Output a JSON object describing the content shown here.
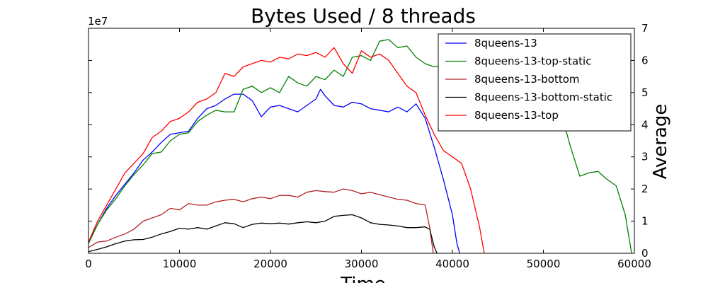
{
  "chart_data": {
    "type": "line",
    "title": "Bytes Used / 8 threads",
    "xlabel": "Time",
    "ylabel": "Average",
    "offset_text": "1e7",
    "xlim": [
      0,
      60000
    ],
    "ylim": [
      0,
      70000000
    ],
    "x_ticks": [
      0,
      10000,
      20000,
      30000,
      40000,
      50000,
      60000
    ],
    "x_tick_labels": [
      "0",
      "10000",
      "20000",
      "30000",
      "40000",
      "50000",
      "60000"
    ],
    "y_ticks": [
      0,
      10000000,
      20000000,
      30000000,
      40000000,
      50000000,
      60000000,
      70000000
    ],
    "y_tick_labels": [
      "0",
      "1",
      "2",
      "3",
      "4",
      "5",
      "6",
      "7"
    ],
    "legend_position": "upper-right",
    "grid": false,
    "series": [
      {
        "name": "8queens-13",
        "color": "#0000ff",
        "points": [
          [
            0,
            3500000
          ],
          [
            1000,
            9000000
          ],
          [
            2000,
            14000000
          ],
          [
            3000,
            18000000
          ],
          [
            4000,
            21500000
          ],
          [
            5000,
            25000000
          ],
          [
            6000,
            29000000
          ],
          [
            7000,
            31500000
          ],
          [
            8000,
            34500000
          ],
          [
            9000,
            37000000
          ],
          [
            10000,
            37500000
          ],
          [
            11000,
            38000000
          ],
          [
            12000,
            42000000
          ],
          [
            13000,
            45000000
          ],
          [
            14000,
            46000000
          ],
          [
            15000,
            48000000
          ],
          [
            16000,
            49500000
          ],
          [
            17000,
            49500000
          ],
          [
            18000,
            47500000
          ],
          [
            19000,
            42500000
          ],
          [
            20000,
            45500000
          ],
          [
            21000,
            46000000
          ],
          [
            22000,
            45000000
          ],
          [
            23000,
            44000000
          ],
          [
            24000,
            46000000
          ],
          [
            25000,
            48000000
          ],
          [
            25500,
            51000000
          ],
          [
            26000,
            49000000
          ],
          [
            27000,
            46000000
          ],
          [
            28000,
            45500000
          ],
          [
            29000,
            47000000
          ],
          [
            30000,
            46500000
          ],
          [
            31000,
            45000000
          ],
          [
            32000,
            44500000
          ],
          [
            33000,
            44000000
          ],
          [
            34000,
            45500000
          ],
          [
            35000,
            44000000
          ],
          [
            36000,
            46500000
          ],
          [
            37000,
            42000000
          ],
          [
            38000,
            33000000
          ],
          [
            39000,
            23000000
          ],
          [
            40000,
            12000000
          ],
          [
            40500,
            3000000
          ],
          [
            40800,
            0
          ]
        ]
      },
      {
        "name": "8queens-13-top-static",
        "color": "#008000",
        "points": [
          [
            0,
            3000000
          ],
          [
            1000,
            9000000
          ],
          [
            2000,
            13500000
          ],
          [
            3000,
            17000000
          ],
          [
            4000,
            21000000
          ],
          [
            5000,
            24500000
          ],
          [
            6000,
            27500000
          ],
          [
            7000,
            31000000
          ],
          [
            8000,
            31500000
          ],
          [
            9000,
            35000000
          ],
          [
            10000,
            37000000
          ],
          [
            11000,
            37500000
          ],
          [
            12000,
            41000000
          ],
          [
            13000,
            43000000
          ],
          [
            14000,
            44500000
          ],
          [
            15000,
            44000000
          ],
          [
            16000,
            44000000
          ],
          [
            17000,
            51000000
          ],
          [
            18000,
            52000000
          ],
          [
            19000,
            50000000
          ],
          [
            20000,
            51500000
          ],
          [
            21000,
            50000000
          ],
          [
            22000,
            55000000
          ],
          [
            23000,
            53000000
          ],
          [
            24000,
            52000000
          ],
          [
            25000,
            55000000
          ],
          [
            26000,
            54000000
          ],
          [
            27000,
            57000000
          ],
          [
            28000,
            55000000
          ],
          [
            29000,
            61000000
          ],
          [
            30000,
            61500000
          ],
          [
            31000,
            60000000
          ],
          [
            32000,
            66000000
          ],
          [
            33000,
            66500000
          ],
          [
            34000,
            64000000
          ],
          [
            35000,
            64500000
          ],
          [
            36000,
            61000000
          ],
          [
            37000,
            59000000
          ],
          [
            38000,
            58000000
          ],
          [
            39000,
            58500000
          ],
          [
            52000,
            43000000
          ],
          [
            53000,
            33000000
          ],
          [
            54000,
            24000000
          ],
          [
            55000,
            25000000
          ],
          [
            56000,
            25500000
          ],
          [
            57000,
            23000000
          ],
          [
            58000,
            21000000
          ],
          [
            59000,
            12000000
          ],
          [
            59700,
            0
          ]
        ]
      },
      {
        "name": "8queens-13-bottom",
        "color": "#b22222",
        "points": [
          [
            0,
            1800000
          ],
          [
            1000,
            3500000
          ],
          [
            2000,
            3800000
          ],
          [
            3000,
            5000000
          ],
          [
            4000,
            6000000
          ],
          [
            5000,
            7500000
          ],
          [
            6000,
            10000000
          ],
          [
            7000,
            11000000
          ],
          [
            8000,
            12000000
          ],
          [
            9000,
            14000000
          ],
          [
            10000,
            13500000
          ],
          [
            11000,
            15500000
          ],
          [
            12000,
            15000000
          ],
          [
            13000,
            15000000
          ],
          [
            14000,
            16000000
          ],
          [
            15000,
            16500000
          ],
          [
            16000,
            16800000
          ],
          [
            17000,
            16000000
          ],
          [
            18000,
            17000000
          ],
          [
            19000,
            17500000
          ],
          [
            20000,
            17000000
          ],
          [
            21000,
            18000000
          ],
          [
            22000,
            18000000
          ],
          [
            23000,
            17500000
          ],
          [
            24000,
            19000000
          ],
          [
            25000,
            19500000
          ],
          [
            26000,
            19200000
          ],
          [
            27000,
            19000000
          ],
          [
            28000,
            20000000
          ],
          [
            29000,
            19500000
          ],
          [
            30000,
            18500000
          ],
          [
            31000,
            19000000
          ],
          [
            32000,
            18200000
          ],
          [
            33000,
            17500000
          ],
          [
            34000,
            16800000
          ],
          [
            35000,
            16500000
          ],
          [
            36000,
            15500000
          ],
          [
            37000,
            15000000
          ],
          [
            37500,
            8000000
          ],
          [
            37900,
            0
          ]
        ]
      },
      {
        "name": "8queens-13-bottom-static",
        "color": "#000000",
        "points": [
          [
            0,
            500000
          ],
          [
            1000,
            1200000
          ],
          [
            2000,
            2000000
          ],
          [
            3000,
            3000000
          ],
          [
            4000,
            3800000
          ],
          [
            5000,
            4200000
          ],
          [
            6000,
            4300000
          ],
          [
            7000,
            5000000
          ],
          [
            8000,
            6000000
          ],
          [
            9000,
            6800000
          ],
          [
            10000,
            7800000
          ],
          [
            11000,
            7500000
          ],
          [
            12000,
            8000000
          ],
          [
            13000,
            7500000
          ],
          [
            14000,
            8500000
          ],
          [
            15000,
            9500000
          ],
          [
            16000,
            9200000
          ],
          [
            17000,
            8000000
          ],
          [
            18000,
            9000000
          ],
          [
            19000,
            9400000
          ],
          [
            20000,
            9200000
          ],
          [
            21000,
            9400000
          ],
          [
            22000,
            9100000
          ],
          [
            23000,
            9500000
          ],
          [
            24000,
            9800000
          ],
          [
            25000,
            9500000
          ],
          [
            26000,
            10000000
          ],
          [
            27000,
            11500000
          ],
          [
            28000,
            11800000
          ],
          [
            29000,
            12000000
          ],
          [
            30000,
            11000000
          ],
          [
            31000,
            9500000
          ],
          [
            32000,
            9000000
          ],
          [
            33000,
            8800000
          ],
          [
            34000,
            8500000
          ],
          [
            35000,
            8000000
          ],
          [
            36000,
            8000000
          ],
          [
            37000,
            8200000
          ],
          [
            37500,
            7500000
          ],
          [
            38000,
            2000000
          ],
          [
            38300,
            0
          ]
        ]
      },
      {
        "name": "8queens-13-top",
        "color": "#ff0000",
        "points": [
          [
            0,
            3500000
          ],
          [
            1000,
            10000000
          ],
          [
            2000,
            15000000
          ],
          [
            3000,
            20000000
          ],
          [
            4000,
            25000000
          ],
          [
            5000,
            28000000
          ],
          [
            6000,
            31000000
          ],
          [
            7000,
            36000000
          ],
          [
            8000,
            38000000
          ],
          [
            9000,
            41000000
          ],
          [
            10000,
            42000000
          ],
          [
            11000,
            44000000
          ],
          [
            12000,
            47000000
          ],
          [
            13000,
            48000000
          ],
          [
            14000,
            50000000
          ],
          [
            15000,
            56000000
          ],
          [
            16000,
            55000000
          ],
          [
            17000,
            58000000
          ],
          [
            18000,
            59000000
          ],
          [
            19000,
            60000000
          ],
          [
            20000,
            59500000
          ],
          [
            21000,
            61000000
          ],
          [
            22000,
            60500000
          ],
          [
            23000,
            62000000
          ],
          [
            24000,
            61500000
          ],
          [
            25000,
            62500000
          ],
          [
            26000,
            61000000
          ],
          [
            27000,
            64000000
          ],
          [
            28000,
            59000000
          ],
          [
            29000,
            56000000
          ],
          [
            30000,
            63000000
          ],
          [
            31000,
            61000000
          ],
          [
            32000,
            62000000
          ],
          [
            33000,
            60000000
          ],
          [
            34000,
            56000000
          ],
          [
            35000,
            52000000
          ],
          [
            36000,
            50000000
          ],
          [
            37000,
            43000000
          ],
          [
            38000,
            37000000
          ],
          [
            39000,
            32000000
          ],
          [
            40000,
            30000000
          ],
          [
            41000,
            28000000
          ],
          [
            42000,
            20000000
          ],
          [
            43000,
            8000000
          ],
          [
            43500,
            0
          ]
        ]
      }
    ]
  }
}
